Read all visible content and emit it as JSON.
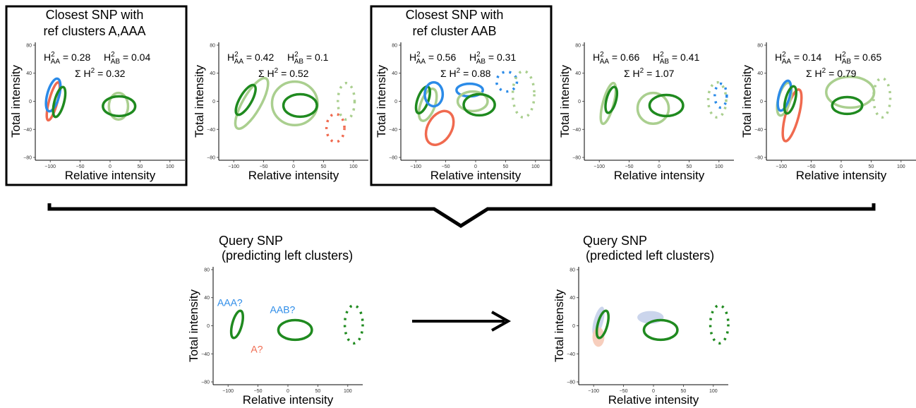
{
  "colors": {
    "aa_dark_green": "#1f8a1f",
    "aa_light_green": "#aacf8f",
    "aab_blue": "#2b8be8",
    "a_red": "#f06a4f",
    "pred_blue_fill": "#c5d0ea",
    "pred_red_fill": "#f6c9b6"
  },
  "axes": {
    "xlabel": "Relative intensity",
    "ylabel": "Total intensity",
    "xticks": [
      "−100",
      "−50",
      "0",
      "50",
      "100"
    ],
    "yticks": [
      "80",
      "40",
      "0",
      "−40",
      "−80"
    ],
    "xlim": [
      -125,
      125
    ],
    "ylim": [
      -84,
      84
    ]
  },
  "reference_snps": [
    {
      "title_line1": "Closest SNP with",
      "title_line2": "ref clusters A,AAA",
      "highlighted": true,
      "h_aa": "0.28",
      "h_ab": "0.04",
      "sum_h": "0.32",
      "clusters": [
        {
          "color": "light_green",
          "style": "solid",
          "cx": 14,
          "cy": -7,
          "rx": 16,
          "ry": 19,
          "angle": 0
        },
        {
          "color": "dark_green",
          "style": "solid",
          "cx": 15,
          "cy": -7,
          "rx": 27,
          "ry": 14,
          "angle": 0
        },
        {
          "color": "red",
          "style": "solid",
          "cx": -95,
          "cy": 0,
          "rx": 7,
          "ry": 28,
          "angle": 15
        },
        {
          "color": "blue",
          "style": "solid",
          "cx": -95,
          "cy": 9,
          "rx": 10,
          "ry": 24,
          "angle": 15
        },
        {
          "color": "dark_green",
          "style": "solid",
          "cx": -85,
          "cy": -1,
          "rx": 8,
          "ry": 22,
          "angle": 15
        }
      ]
    },
    {
      "title_line1": "",
      "title_line2": "",
      "highlighted": false,
      "h_aa": "0.42",
      "h_ab": "0.1",
      "sum_h": "0.52",
      "clusters": [
        {
          "color": "light_green",
          "style": "solid",
          "cx": -70,
          "cy": -3,
          "rx": 15,
          "ry": 41,
          "angle": 30
        },
        {
          "color": "dark_green",
          "style": "solid",
          "cx": -80,
          "cy": 2,
          "rx": 10,
          "ry": 24,
          "angle": 30
        },
        {
          "color": "light_green",
          "style": "solid",
          "cx": 2,
          "cy": -3,
          "rx": 38,
          "ry": 31,
          "angle": 0
        },
        {
          "color": "dark_green",
          "style": "solid",
          "cx": 11,
          "cy": -6,
          "rx": 28,
          "ry": 16,
          "angle": 0
        },
        {
          "color": "red",
          "style": "dotted",
          "cx": 70,
          "cy": -38,
          "rx": 15,
          "ry": 20,
          "angle": 0
        },
        {
          "color": "light_green",
          "style": "dotted",
          "cx": 88,
          "cy": 0,
          "rx": 14,
          "ry": 26,
          "angle": 0
        }
      ]
    },
    {
      "title_line1": "Closest SNP with",
      "title_line2": "ref cluster AAB",
      "highlighted": true,
      "h_aa": "0.56",
      "h_ab": "0.31",
      "sum_h": "0.88",
      "clusters": [
        {
          "color": "red",
          "style": "solid",
          "cx": -60,
          "cy": -38,
          "rx": 20,
          "ry": 26,
          "angle": 30
        },
        {
          "color": "light_green",
          "style": "solid",
          "cx": -80,
          "cy": -5,
          "rx": 12,
          "ry": 24,
          "angle": 20
        },
        {
          "color": "dark_green",
          "style": "solid",
          "cx": -88,
          "cy": 2,
          "rx": 9,
          "ry": 20,
          "angle": 20
        },
        {
          "color": "blue",
          "style": "solid",
          "cx": -70,
          "cy": 10,
          "rx": 15,
          "ry": 17,
          "angle": 0
        },
        {
          "color": "blue",
          "style": "solid",
          "cx": -10,
          "cy": 16,
          "rx": 22,
          "ry": 9,
          "angle": 0
        },
        {
          "color": "light_green",
          "style": "solid",
          "cx": -5,
          "cy": 0,
          "rx": 25,
          "ry": 14,
          "angle": 0
        },
        {
          "color": "dark_green",
          "style": "solid",
          "cx": 6,
          "cy": -5,
          "rx": 26,
          "ry": 15,
          "angle": 0
        },
        {
          "color": "blue",
          "style": "dotted",
          "cx": 52,
          "cy": 28,
          "rx": 17,
          "ry": 14,
          "angle": 0
        },
        {
          "color": "light_green",
          "style": "dotted",
          "cx": 80,
          "cy": 10,
          "rx": 18,
          "ry": 33,
          "angle": 0
        }
      ]
    },
    {
      "title_line1": "",
      "title_line2": "",
      "highlighted": false,
      "h_aa": "0.66",
      "h_ab": "0.41",
      "sum_h": "1.07",
      "clusters": [
        {
          "color": "light_green",
          "style": "solid",
          "cx": -85,
          "cy": -3,
          "rx": 9,
          "ry": 30,
          "angle": 15
        },
        {
          "color": "dark_green",
          "style": "solid",
          "cx": -80,
          "cy": 2,
          "rx": 8,
          "ry": 19,
          "angle": 15
        },
        {
          "color": "light_green",
          "style": "solid",
          "cx": -10,
          "cy": -10,
          "rx": 26,
          "ry": 22,
          "angle": 0
        },
        {
          "color": "dark_green",
          "style": "solid",
          "cx": 12,
          "cy": -6,
          "rx": 28,
          "ry": 15,
          "angle": 0
        },
        {
          "color": "blue",
          "style": "dotted",
          "cx": 103,
          "cy": 8,
          "rx": 10,
          "ry": 17,
          "angle": 0
        },
        {
          "color": "light_green",
          "style": "dotted",
          "cx": 97,
          "cy": 2,
          "rx": 15,
          "ry": 25,
          "angle": 0
        }
      ]
    },
    {
      "title_line1": "",
      "title_line2": "",
      "highlighted": false,
      "h_aa": "0.14",
      "h_ab": "0.65",
      "sum_h": "0.79",
      "clusters": [
        {
          "color": "red",
          "style": "solid",
          "cx": -82,
          "cy": -20,
          "rx": 11,
          "ry": 38,
          "angle": 15
        },
        {
          "color": "light_green",
          "style": "solid",
          "cx": -95,
          "cy": 3,
          "rx": 10,
          "ry": 24,
          "angle": 15
        },
        {
          "color": "blue",
          "style": "solid",
          "cx": -95,
          "cy": 8,
          "rx": 9,
          "ry": 22,
          "angle": 15
        },
        {
          "color": "dark_green",
          "style": "solid",
          "cx": -85,
          "cy": 2,
          "rx": 8,
          "ry": 20,
          "angle": 15
        },
        {
          "color": "light_green",
          "style": "solid",
          "cx": 15,
          "cy": 13,
          "rx": 40,
          "ry": 22,
          "angle": 0
        },
        {
          "color": "dark_green",
          "style": "solid",
          "cx": 10,
          "cy": -6,
          "rx": 25,
          "ry": 12,
          "angle": 0
        },
        {
          "color": "light_green",
          "style": "dotted",
          "cx": 68,
          "cy": 5,
          "rx": 14,
          "ry": 28,
          "angle": 0
        }
      ]
    }
  ],
  "query_panels": [
    {
      "title_line1": "Query SNP",
      "title_line2": "(predicting left clusters)",
      "clusters": [
        {
          "color": "dark_green",
          "style": "solid",
          "fill": "none",
          "cx": -85,
          "cy": 2,
          "rx": 8,
          "ry": 20,
          "angle": 15
        },
        {
          "color": "dark_green",
          "style": "solid",
          "fill": "none",
          "cx": 12,
          "cy": -6,
          "rx": 28,
          "ry": 14,
          "angle": 0
        },
        {
          "color": "dark_green",
          "style": "dotted",
          "fill": "none",
          "cx": 110,
          "cy": 2,
          "rx": 15,
          "ry": 27,
          "angle": 0
        }
      ],
      "annotations": [
        {
          "text": "AAA?",
          "color": "blue",
          "x": -118,
          "y": 28
        },
        {
          "text": "AAB?",
          "color": "blue",
          "x": -30,
          "y": 18
        },
        {
          "text": "A?",
          "color": "red",
          "x": -62,
          "y": -38
        }
      ]
    },
    {
      "title_line1": "Query SNP",
      "title_line2": "(predicted left clusters)",
      "clusters": [
        {
          "color": "blue",
          "style": "filled",
          "fill": "pred_blue_fill",
          "cx": -92,
          "cy": 6,
          "rx": 8,
          "ry": 22,
          "angle": 15
        },
        {
          "color": "red",
          "style": "filled",
          "fill": "pred_red_fill",
          "cx": -92,
          "cy": -16,
          "rx": 10,
          "ry": 14,
          "angle": 0
        },
        {
          "color": "blue",
          "style": "filled",
          "fill": "pred_blue_fill",
          "cx": -5,
          "cy": 12,
          "rx": 22,
          "ry": 9,
          "angle": 0
        },
        {
          "color": "dark_green",
          "style": "solid",
          "fill": "none",
          "cx": -85,
          "cy": 2,
          "rx": 8,
          "ry": 20,
          "angle": 15
        },
        {
          "color": "dark_green",
          "style": "solid",
          "fill": "none",
          "cx": 12,
          "cy": -6,
          "rx": 28,
          "ry": 14,
          "angle": 0
        },
        {
          "color": "dark_green",
          "style": "dotted",
          "fill": "none",
          "cx": 110,
          "cy": 2,
          "rx": 15,
          "ry": 27,
          "angle": 0
        }
      ]
    }
  ]
}
